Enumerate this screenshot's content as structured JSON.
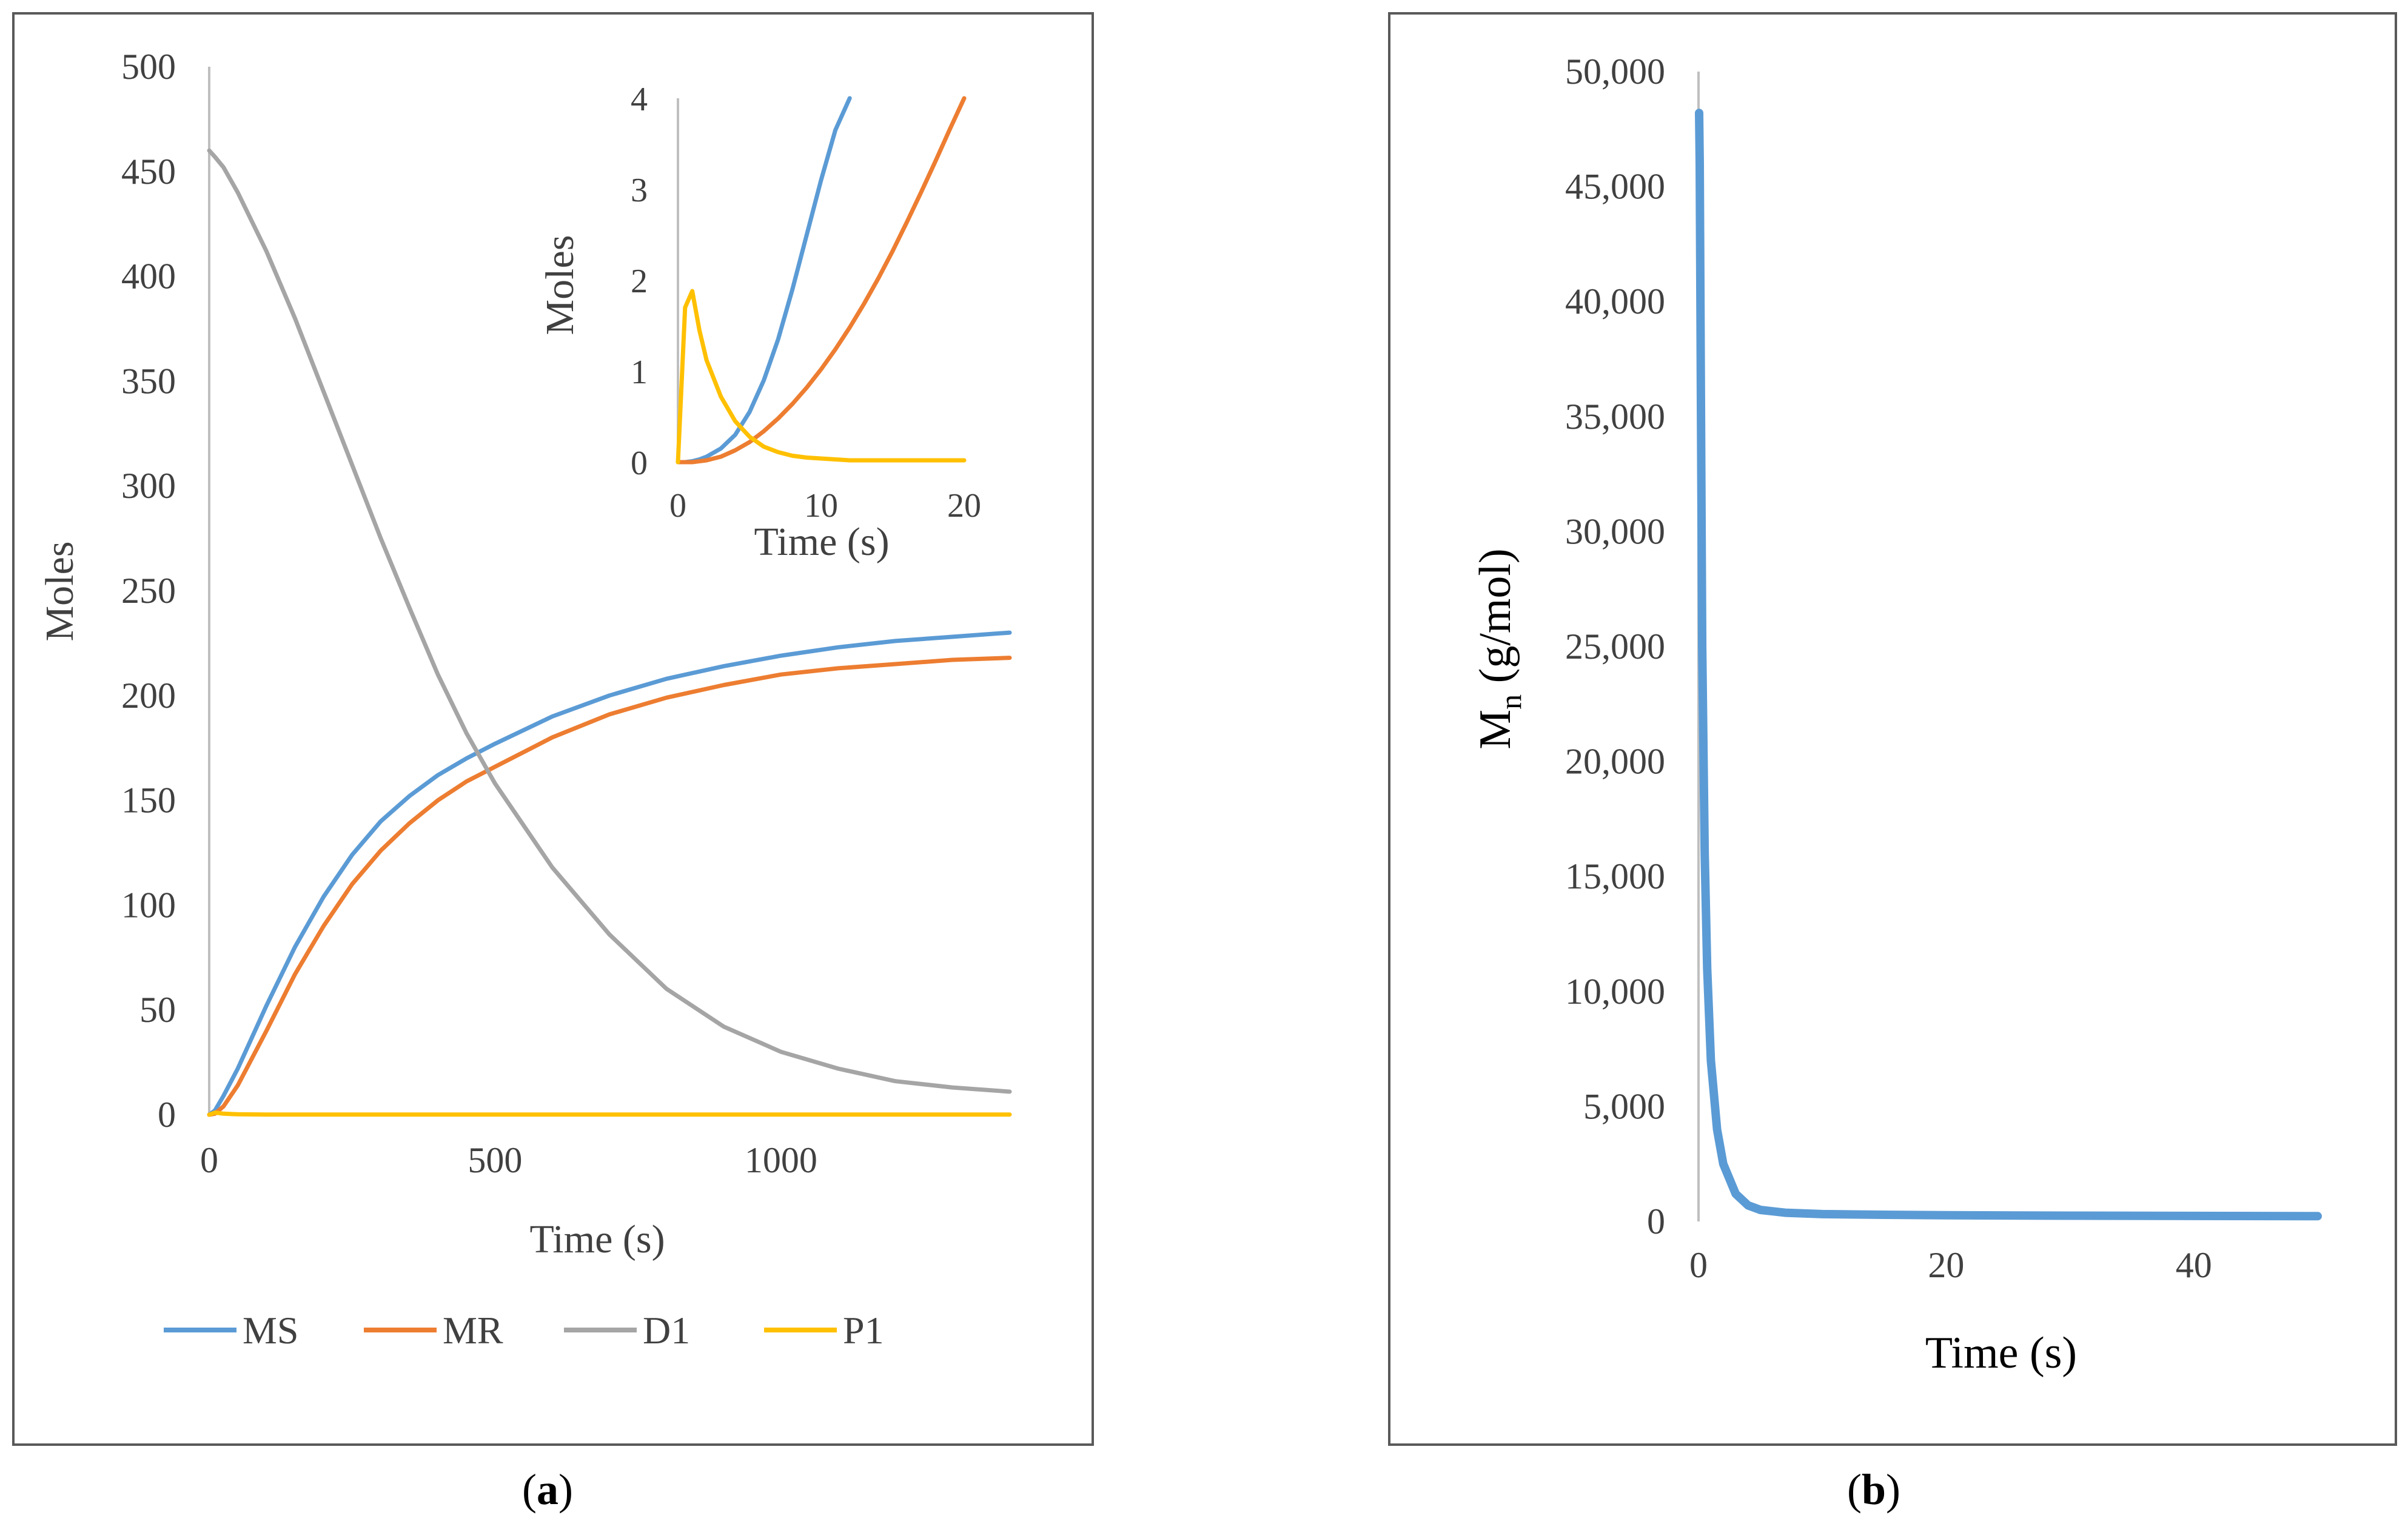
{
  "colors": {
    "MS": "#5b9bd5",
    "MR": "#ed7d31",
    "D1": "#a5a5a5",
    "P1": "#ffc000",
    "Mn": "#5b9bd5",
    "axis": "#bfbfbf",
    "frame": "#595959"
  },
  "panel_a": {
    "caption_open": "(",
    "caption_letter": "a",
    "caption_close": ")"
  },
  "panel_b": {
    "caption_open": "(",
    "caption_letter": "b",
    "caption_close": ")"
  },
  "chart_data": [
    {
      "id": "panel-a-main",
      "type": "line",
      "title": "",
      "xlabel": "Time  (s)",
      "ylabel": "Moles",
      "xlim": [
        0,
        1400
      ],
      "ylim": [
        0,
        500
      ],
      "xticks": [
        0,
        500,
        1000
      ],
      "xtick_labels": [
        "0",
        "500",
        "1000"
      ],
      "yticks": [
        0,
        50,
        100,
        150,
        200,
        250,
        300,
        350,
        400,
        450,
        500
      ],
      "ytick_labels": [
        "0",
        "50",
        "100",
        "150",
        "200",
        "250",
        "300",
        "350",
        "400",
        "450",
        "500"
      ],
      "grid": false,
      "legend_position": "bottom",
      "x": [
        0,
        10,
        25,
        50,
        100,
        150,
        200,
        250,
        300,
        350,
        400,
        450,
        500,
        600,
        700,
        800,
        900,
        1000,
        1100,
        1200,
        1300,
        1400
      ],
      "series": [
        {
          "name": "MS",
          "color_key": "MS",
          "values": [
            0,
            2,
            9,
            22,
            52,
            80,
            104,
            124,
            140,
            152,
            162,
            170,
            177,
            190,
            200,
            208,
            214,
            219,
            223,
            226,
            228,
            230
          ]
        },
        {
          "name": "MR",
          "color_key": "MR",
          "values": [
            0,
            0.5,
            4,
            14,
            40,
            67,
            90,
            110,
            126,
            139,
            150,
            159,
            166,
            180,
            191,
            199,
            205,
            210,
            213,
            215,
            217,
            218
          ]
        },
        {
          "name": "D1",
          "color_key": "D1",
          "values": [
            460,
            457,
            452,
            440,
            412,
            380,
            345,
            310,
            275,
            242,
            210,
            182,
            158,
            118,
            86,
            60,
            42,
            30,
            22,
            16,
            13,
            11
          ]
        },
        {
          "name": "P1",
          "color_key": "P1",
          "values": [
            0,
            1,
            0.5,
            0.2,
            0.1,
            0.1,
            0.1,
            0.1,
            0.1,
            0.1,
            0.1,
            0.1,
            0.1,
            0.1,
            0.1,
            0.1,
            0.1,
            0.1,
            0.1,
            0.1,
            0.1,
            0.1
          ]
        }
      ]
    },
    {
      "id": "panel-a-inset",
      "type": "line",
      "title": "",
      "xlabel": "Time (s)",
      "ylabel": "Moles",
      "xlim": [
        0,
        20
      ],
      "ylim": [
        0,
        4
      ],
      "xticks": [
        0,
        10,
        20
      ],
      "xtick_labels": [
        "0",
        "10",
        "20"
      ],
      "yticks": [
        0,
        1,
        2,
        3,
        4
      ],
      "ytick_labels": [
        "0",
        "1",
        "2",
        "3",
        "4"
      ],
      "grid": false,
      "x": [
        0,
        0.5,
        1,
        1.5,
        2,
        3,
        4,
        5,
        6,
        7,
        8,
        9,
        10,
        11,
        12,
        13,
        14,
        15,
        16,
        17,
        18,
        19,
        20
      ],
      "series": [
        {
          "name": "MS",
          "color_key": "MS",
          "values": [
            0,
            0,
            0.01,
            0.03,
            0.06,
            0.15,
            0.3,
            0.55,
            0.9,
            1.35,
            1.9,
            2.5,
            3.1,
            3.65,
            4.0,
            null,
            null,
            null,
            null,
            null,
            null,
            null,
            null
          ]
        },
        {
          "name": "MR",
          "color_key": "MR",
          "values": [
            0,
            0,
            0,
            0.01,
            0.02,
            0.06,
            0.13,
            0.22,
            0.34,
            0.48,
            0.64,
            0.82,
            1.02,
            1.24,
            1.48,
            1.74,
            2.02,
            2.32,
            2.64,
            2.97,
            3.31,
            3.66,
            4.0
          ]
        },
        {
          "name": "P1",
          "color_key": "P1",
          "values": [
            0,
            1.7,
            1.88,
            1.45,
            1.12,
            0.72,
            0.45,
            0.28,
            0.17,
            0.11,
            0.07,
            0.05,
            0.04,
            0.03,
            0.02,
            0.02,
            0.02,
            0.02,
            0.02,
            0.02,
            0.02,
            0.02,
            0.02
          ]
        }
      ]
    },
    {
      "id": "panel-b",
      "type": "line",
      "title": "",
      "xlabel": "Time (s)",
      "ylabel_main": "M",
      "ylabel_sub": "n",
      "ylabel_rest": " (g/mol)",
      "xlim": [
        0,
        50
      ],
      "ylim": [
        0,
        50000
      ],
      "xticks": [
        0,
        20,
        40
      ],
      "xtick_labels": [
        "0",
        "20",
        "40"
      ],
      "yticks": [
        0,
        5000,
        10000,
        15000,
        20000,
        25000,
        30000,
        35000,
        40000,
        45000,
        50000
      ],
      "ytick_labels": [
        "0",
        "5,000",
        "10,000",
        "15,000",
        "20,000",
        "25,000",
        "30,000",
        "35,000",
        "40,000",
        "45,000",
        "50,000"
      ],
      "grid": false,
      "x": [
        0.05,
        0.1,
        0.2,
        0.3,
        0.5,
        0.7,
        1,
        1.5,
        2,
        3,
        4,
        5,
        7,
        10,
        15,
        20,
        30,
        40,
        50
      ],
      "series": [
        {
          "name": "Mn",
          "color_key": "Mn",
          "values": [
            48200,
            46000,
            35000,
            25000,
            16000,
            11000,
            7000,
            4000,
            2500,
            1200,
            700,
            500,
            380,
            320,
            290,
            270,
            250,
            240,
            230
          ]
        }
      ]
    }
  ]
}
